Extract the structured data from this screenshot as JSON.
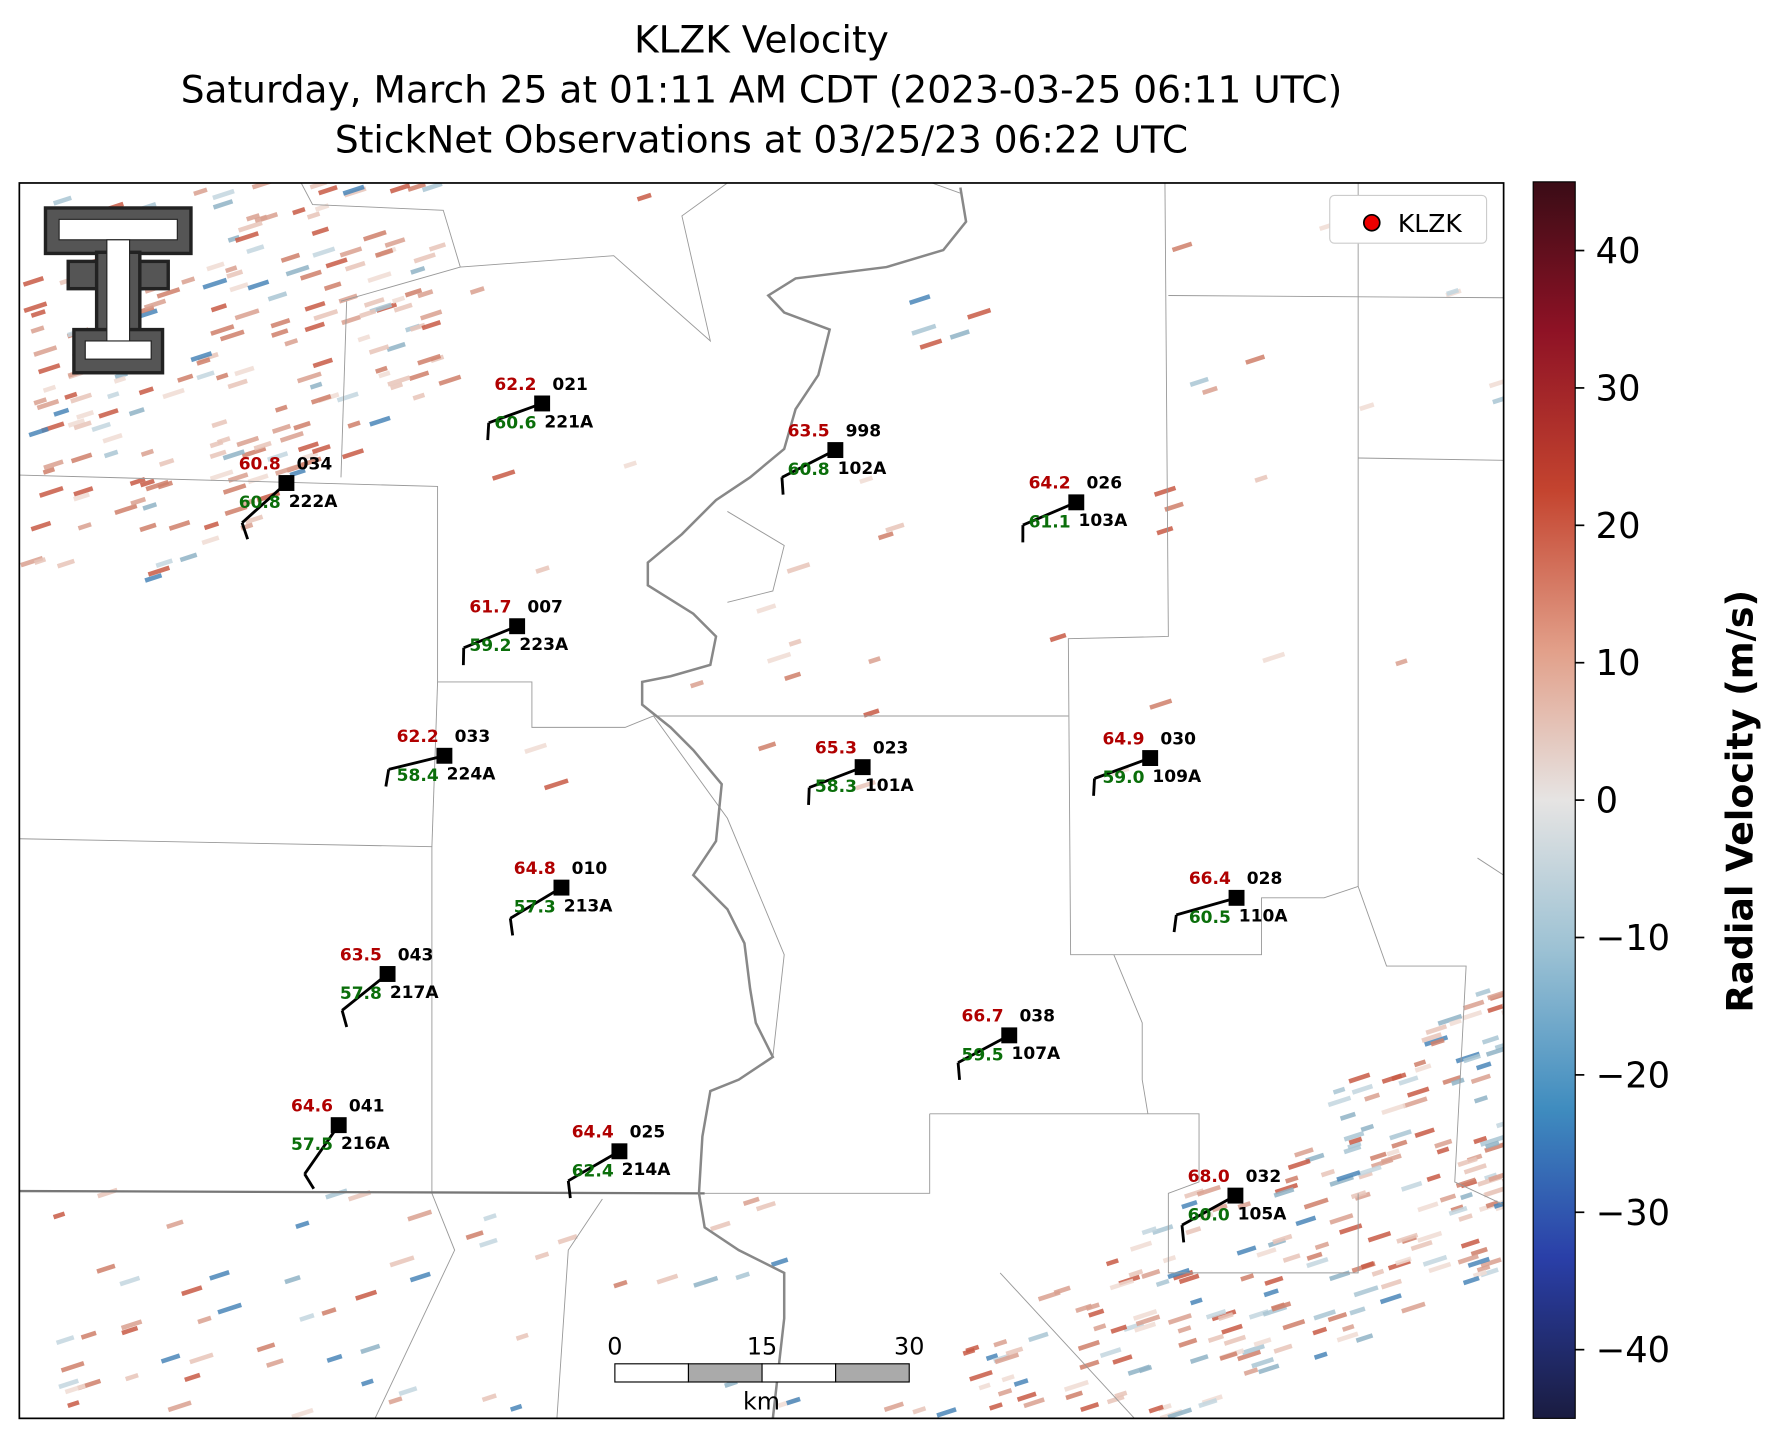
{
  "header": {
    "title_lines": [
      "KLZK Velocity",
      "Saturday, March 25 at 01:11 AM CDT (2023-03-25 06:11 UTC)",
      "StickNet Observations at 03/25/23 06:22 UTC"
    ]
  },
  "legend": {
    "label": "KLZK"
  },
  "colorbar": {
    "label": "Radial Velocity (m/s)",
    "lim": [
      -45,
      45
    ],
    "ticks": [
      {
        "value": -40,
        "label": "−40"
      },
      {
        "value": -30,
        "label": "−30"
      },
      {
        "value": -20,
        "label": "−20"
      },
      {
        "value": -10,
        "label": "−10"
      },
      0,
      10,
      20,
      30,
      40
    ]
  },
  "scale_bar": {
    "ticks": [
      0,
      15,
      30
    ],
    "unit": "km"
  },
  "stations": [
    {
      "temp": "62.2",
      "id": "021",
      "dew": "60.6",
      "code": "221A"
    },
    {
      "temp": "60.8",
      "id": "034",
      "dew": "60.8",
      "code": "222A"
    },
    {
      "temp": "63.5",
      "id": "998",
      "dew": "60.8",
      "code": "102A"
    },
    {
      "temp": "64.2",
      "id": "026",
      "dew": "61.1",
      "code": "103A"
    },
    {
      "temp": "61.7",
      "id": "007",
      "dew": "59.2",
      "code": "223A"
    },
    {
      "temp": "62.2",
      "id": "033",
      "dew": "58.4",
      "code": "224A"
    },
    {
      "temp": "65.3",
      "id": "023",
      "dew": "58.3",
      "code": "101A"
    },
    {
      "temp": "64.9",
      "id": "030",
      "dew": "59.0",
      "code": "109A"
    },
    {
      "temp": "64.8",
      "id": "010",
      "dew": "57.3",
      "code": "213A"
    },
    {
      "temp": "66.4",
      "id": "028",
      "dew": "60.5",
      "code": "110A"
    },
    {
      "temp": "63.5",
      "id": "043",
      "dew": "57.8",
      "code": "217A"
    },
    {
      "temp": "66.7",
      "id": "038",
      "dew": "59.5",
      "code": "107A"
    },
    {
      "temp": "64.6",
      "id": "041",
      "dew": "57.5",
      "code": "216A"
    },
    {
      "temp": "64.4",
      "id": "025",
      "dew": "62.4",
      "code": "214A"
    },
    {
      "temp": "68.0",
      "id": "032",
      "dew": "60.0",
      "code": "105A"
    }
  ]
}
